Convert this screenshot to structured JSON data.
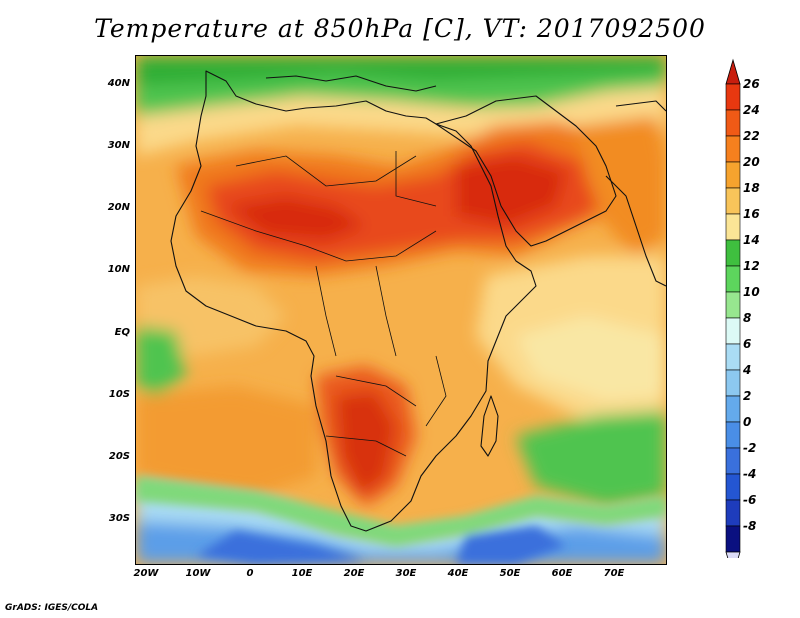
{
  "title": "Temperature at 850hPa [C], VT: 2017092500",
  "credit": "GrADS: IGES/COLA",
  "map": {
    "lat_labels": [
      "40N",
      "30N",
      "20N",
      "10N",
      "EQ",
      "10S",
      "20S",
      "30S"
    ],
    "lon_labels": [
      "20W",
      "10W",
      "0",
      "10E",
      "20E",
      "30E",
      "40E",
      "50E",
      "60E",
      "70E"
    ],
    "lon_range": [
      -22,
      80
    ],
    "lat_range": [
      -36,
      45
    ]
  },
  "colorbar": {
    "levels": [
      "26",
      "24",
      "22",
      "20",
      "18",
      "16",
      "14",
      "12",
      "10",
      "8",
      "6",
      "4",
      "2",
      "0",
      "-2",
      "-4",
      "-6",
      "-8"
    ],
    "colors": [
      "#e83810",
      "#f05a16",
      "#f6801e",
      "#f6a32e",
      "#f8c45a",
      "#fbe596",
      "#3fbf3f",
      "#5dd55d",
      "#97e68f",
      "#dcfaf6",
      "#aadcf4",
      "#8cc8f0",
      "#64aaec",
      "#4a8ee6",
      "#3a70dc",
      "#2456d2",
      "#1e3cbc",
      "#0a1080"
    ],
    "top_arrow_color": "#c81e0e",
    "bottom_arrow_color": "#dcdcf8"
  }
}
